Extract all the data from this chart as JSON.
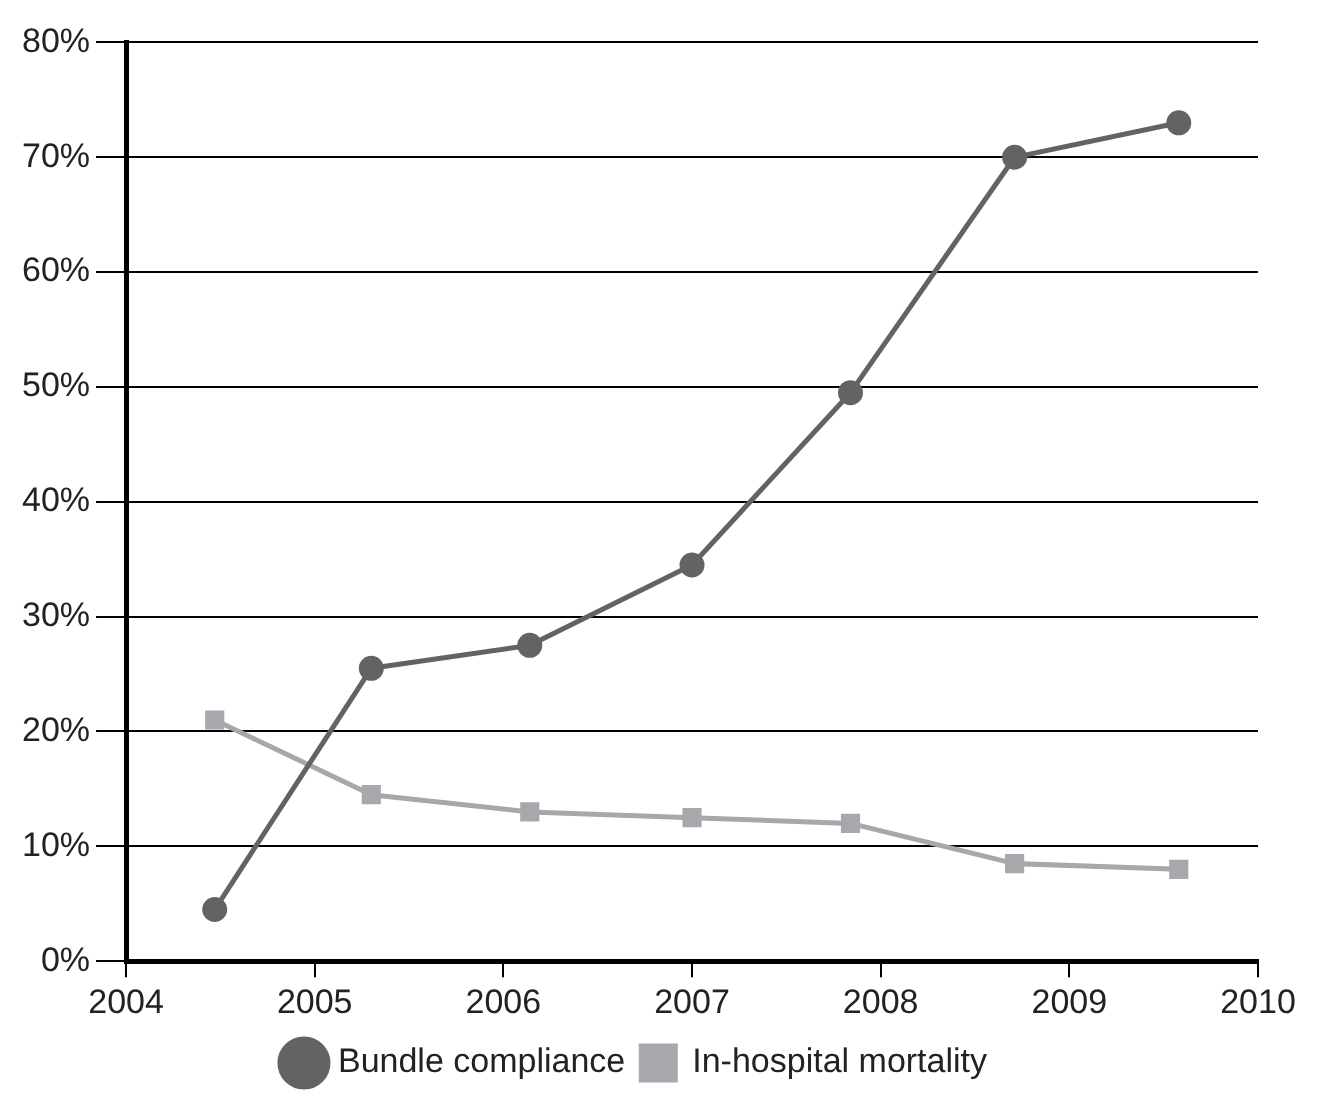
{
  "chart_data": {
    "type": "line",
    "x": [
      2004.47,
      2005.3,
      2006.14,
      2007.0,
      2007.84,
      2008.71,
      2009.58
    ],
    "series": [
      {
        "name": "Bundle compliance",
        "color": "#636366",
        "marker": "circle",
        "values": [
          4.5,
          25.5,
          27.5,
          34.5,
          49.5,
          70,
          73
        ]
      },
      {
        "name": "In-hospital mortality",
        "color": "#a7a8ab",
        "marker": "square",
        "values": [
          21,
          14.5,
          13,
          12.5,
          12,
          8.5,
          8
        ]
      }
    ],
    "xlim": [
      2004,
      2010
    ],
    "xticks": [
      2004,
      2005,
      2006,
      2007,
      2008,
      2009,
      2010
    ],
    "ylim": [
      0,
      80
    ],
    "yticks": [
      {
        "value": 0,
        "label": "0%"
      },
      {
        "value": 10,
        "label": "10%"
      },
      {
        "value": 20,
        "label": "20%"
      },
      {
        "value": 30,
        "label": "30%"
      },
      {
        "value": 40,
        "label": "40%"
      },
      {
        "value": 50,
        "label": "50%"
      },
      {
        "value": 60,
        "label": "60%"
      },
      {
        "value": 70,
        "label": "70%"
      },
      {
        "value": 80,
        "label": "80%"
      }
    ],
    "grid": "y",
    "legend": "bottom",
    "line_style": "solid"
  }
}
